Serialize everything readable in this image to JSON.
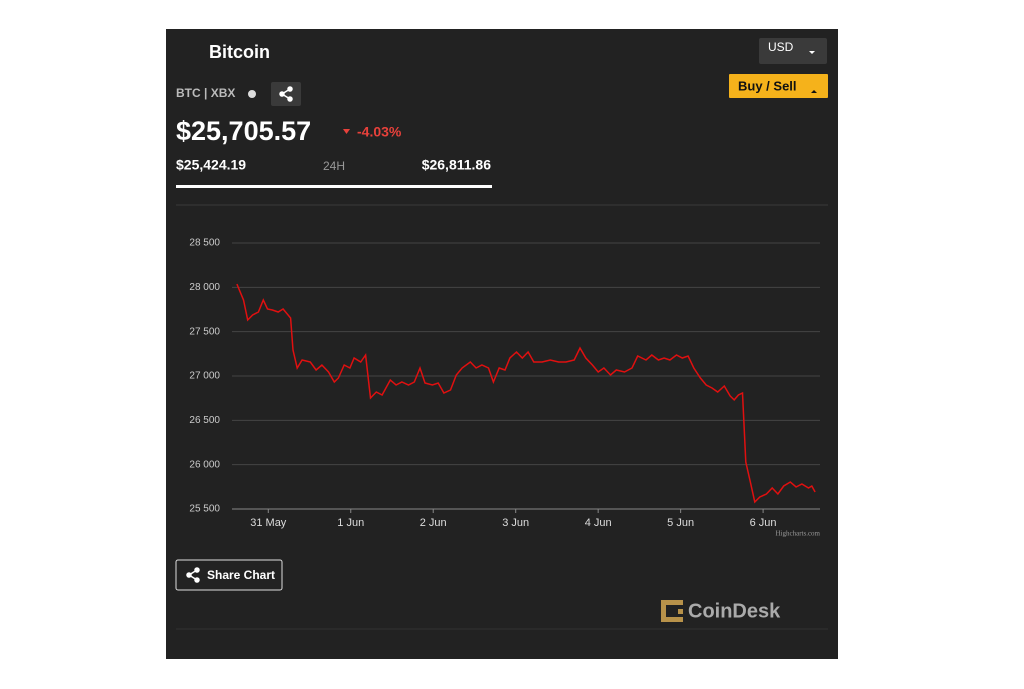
{
  "header": {
    "title": "Bitcoin",
    "currency": "USD",
    "buy_sell": "Buy / Sell",
    "ticker": "BTC | XBX",
    "price": "$25,705.57",
    "change": "-4.03%",
    "low": "$25,424.19",
    "range_label": "24H",
    "high": "$26,811.86"
  },
  "footer": {
    "share": "Share Chart",
    "brand": "CoinDesk"
  },
  "chart_data": {
    "type": "line",
    "color": "#e01010",
    "credit": "Highcharts.com",
    "grid": true,
    "xlim": [
      -0.44,
      6.69
    ],
    "xticks": [
      {
        "value": 0,
        "label": "31 May"
      },
      {
        "value": 1,
        "label": "1 Jun"
      },
      {
        "value": 2,
        "label": "2 Jun"
      },
      {
        "value": 3,
        "label": "3 Jun"
      },
      {
        "value": 4,
        "label": "4 Jun"
      },
      {
        "value": 5,
        "label": "5 Jun"
      },
      {
        "value": 6,
        "label": "6 Jun"
      }
    ],
    "ylim": [
      25500,
      28500
    ],
    "yticks": [
      {
        "value": 25500,
        "label": "25 500"
      },
      {
        "value": 26000,
        "label": "26 000"
      },
      {
        "value": 26500,
        "label": "26 500"
      },
      {
        "value": 27000,
        "label": "27 000"
      },
      {
        "value": 27500,
        "label": "27 500"
      },
      {
        "value": 28000,
        "label": "28 000"
      },
      {
        "value": 28500,
        "label": "28 500"
      }
    ],
    "x": [
      -0.38,
      -0.3,
      -0.25,
      -0.19,
      -0.12,
      -0.06,
      -0.01,
      0.05,
      0.12,
      0.18,
      0.27,
      0.3,
      0.35,
      0.41,
      0.51,
      0.58,
      0.65,
      0.73,
      0.8,
      0.85,
      0.92,
      0.99,
      1.04,
      1.12,
      1.18,
      1.24,
      1.31,
      1.38,
      1.48,
      1.55,
      1.62,
      1.7,
      1.77,
      1.84,
      1.9,
      1.99,
      2.06,
      2.13,
      2.21,
      2.28,
      2.35,
      2.45,
      2.52,
      2.59,
      2.67,
      2.73,
      2.8,
      2.87,
      2.93,
      3.01,
      3.08,
      3.15,
      3.22,
      3.32,
      3.42,
      3.52,
      3.61,
      3.71,
      3.78,
      3.85,
      3.93,
      4.0,
      4.07,
      4.15,
      4.22,
      4.32,
      4.41,
      4.48,
      4.58,
      4.65,
      4.73,
      4.8,
      4.87,
      4.95,
      5.02,
      5.09,
      5.16,
      5.24,
      5.31,
      5.38,
      5.45,
      5.53,
      5.6,
      5.65,
      5.7,
      5.75,
      5.79,
      5.84,
      5.9,
      5.96,
      6.04,
      6.11,
      6.18,
      6.25,
      6.33,
      6.4,
      6.47,
      6.55,
      6.59,
      6.63
    ],
    "values": [
      28037,
      27857,
      27632,
      27688,
      27722,
      27857,
      27756,
      27744,
      27722,
      27756,
      27654,
      27293,
      27090,
      27180,
      27158,
      27068,
      27124,
      27045,
      26932,
      26977,
      27124,
      27090,
      27203,
      27158,
      27237,
      26752,
      26820,
      26786,
      26955,
      26899,
      26932,
      26899,
      26932,
      27090,
      26921,
      26899,
      26921,
      26808,
      26842,
      27011,
      27090,
      27158,
      27090,
      27124,
      27090,
      26932,
      27090,
      27068,
      27203,
      27271,
      27203,
      27271,
      27158,
      27158,
      27180,
      27158,
      27158,
      27180,
      27316,
      27203,
      27124,
      27045,
      27090,
      27011,
      27068,
      27045,
      27090,
      27226,
      27180,
      27237,
      27180,
      27203,
      27180,
      27237,
      27203,
      27226,
      27090,
      26977,
      26899,
      26865,
      26820,
      26887,
      26775,
      26730,
      26786,
      26808,
      26030,
      25827,
      25579,
      25635,
      25669,
      25737,
      25669,
      25759,
      25805,
      25748,
      25782,
      25737,
      25759,
      25692
    ]
  }
}
